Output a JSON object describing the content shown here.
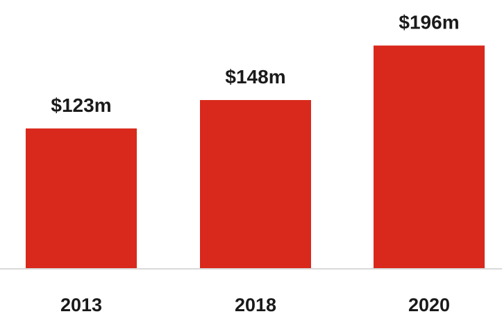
{
  "chart_data": {
    "type": "bar",
    "categories": [
      "2013",
      "2018",
      "2020"
    ],
    "values": [
      123,
      148,
      196
    ],
    "value_labels": [
      "$123m",
      "$148m",
      "$196m"
    ],
    "ylim": [
      0,
      200
    ],
    "grid": false,
    "legend": "none",
    "bar_color": "#d9291c",
    "axis_color": "#d9d9d9"
  }
}
